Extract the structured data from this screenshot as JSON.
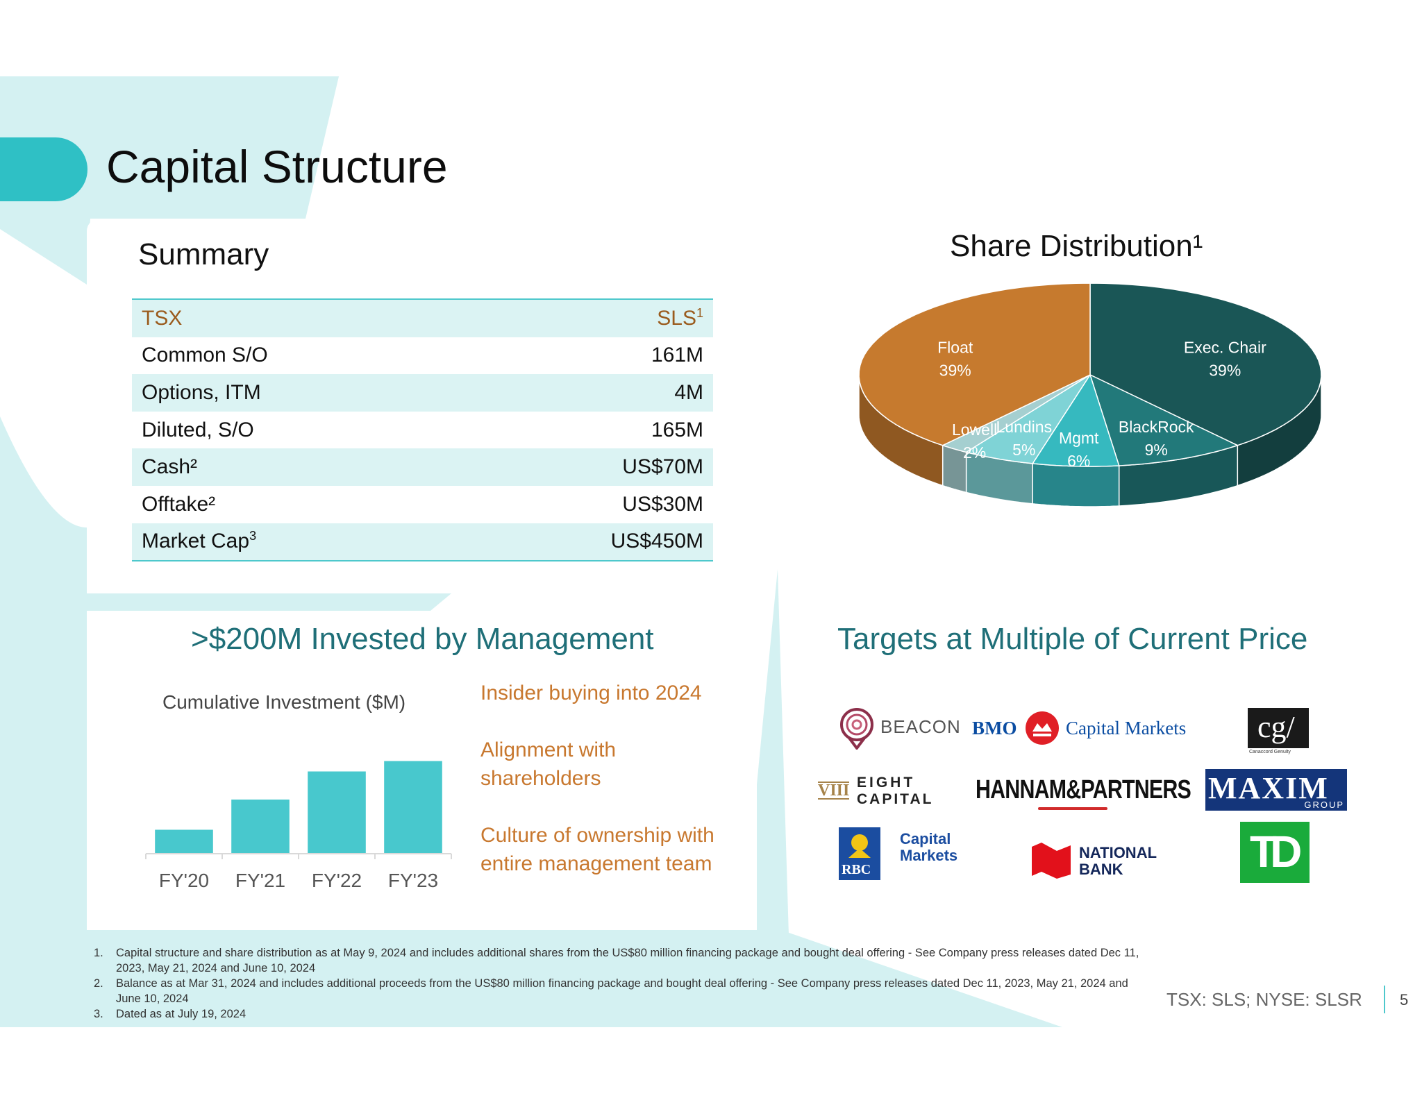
{
  "slide": {
    "title": "Capital Structure",
    "page_number": "5",
    "ticker": "TSX: SLS; NYSE: SLSR"
  },
  "summary": {
    "heading": "Summary",
    "header_row": {
      "label": "TSX",
      "value": "SLS",
      "value_sup": "1"
    },
    "rows": [
      {
        "label": "Common S/O",
        "value": "161M"
      },
      {
        "label": "Options, ITM",
        "value": "4M"
      },
      {
        "label": "Diluted, S/O",
        "value": "165M"
      },
      {
        "label": "Cash²",
        "value": "US$70M"
      },
      {
        "label": "Offtake²",
        "value": "US$30M"
      },
      {
        "label": "Market Cap",
        "label_sup": "3",
        "value": "US$450M"
      }
    ]
  },
  "share_distribution": {
    "heading": "Share Distribution¹",
    "slice_labels": [
      {
        "name": "Float",
        "pct": "39%"
      },
      {
        "name": "Exec. Chair",
        "pct": "39%"
      },
      {
        "name": "BlackRock",
        "pct": "9%"
      },
      {
        "name": "Mgmt",
        "pct": "6%"
      },
      {
        "name": "Lundins",
        "pct": "5%"
      },
      {
        "name": "Lowell",
        "pct": "2%"
      }
    ]
  },
  "investment": {
    "heading": ">$200M Invested by Management",
    "bullets": [
      "Insider buying into 2024",
      "Alignment with shareholders",
      "Culture of ownership with entire management team"
    ]
  },
  "targets": {
    "heading": "Targets at Multiple of Current Price",
    "logos": {
      "beacon": "BEACON",
      "bmo_left": "BMO",
      "bmo_right": "Capital Markets",
      "cg": "cg/",
      "cg_sub": "Canaccord Genuity",
      "eight_top": "EIGHT",
      "eight_bottom": "CAPITAL",
      "eight_mark": "VIII",
      "hannam": "HANNAM&PARTNERS",
      "maxim": "MAXIM",
      "maxim_sub": "GROUP",
      "rbc_mark": "RBC",
      "rbc_line1": "Capital",
      "rbc_line2": "Markets",
      "nbc_line1": "NATIONAL",
      "nbc_line2": "BANK",
      "td": "TD"
    }
  },
  "footnotes": [
    {
      "num": "1.",
      "text": "Capital structure and share distribution as at May 9, 2024 and includes additional shares from the US$80 million financing package and bought deal offering - See Company press releases dated Dec 11, 2023, May 21, 2024 and June 10, 2024"
    },
    {
      "num": "2.",
      "text": "Balance as at Mar 31, 2024 and includes additional proceeds from the US$80 million financing package and bought deal offering - See Company press releases dated Dec 11, 2023, May 21, 2024 and June 10, 2024"
    },
    {
      "num": "3.",
      "text": "Dated as at July 19, 2024"
    }
  ],
  "chart_data": [
    {
      "type": "pie",
      "title": "Share Distribution¹",
      "categories": [
        "Float",
        "Exec. Chair",
        "BlackRock",
        "Mgmt",
        "Lundins",
        "Lowell"
      ],
      "values": [
        39,
        39,
        9,
        6,
        5,
        2
      ],
      "colors": [
        "#c67a2e",
        "#1a5656",
        "#22797a",
        "#36b9bf",
        "#7fd3d6",
        "#a5cfd0"
      ]
    },
    {
      "type": "bar",
      "title": "Cumulative Investment ($M)",
      "categories": [
        "FY'20",
        "FY'21",
        "FY'22",
        "FY'23"
      ],
      "values": [
        46,
        104,
        158,
        178
      ],
      "ylim": [
        0,
        200
      ],
      "color": "#48c8cd"
    }
  ]
}
